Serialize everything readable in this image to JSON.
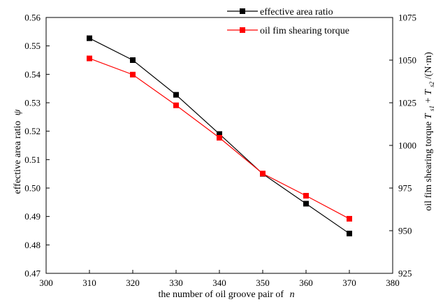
{
  "chart_data": {
    "type": "line",
    "x": [
      310,
      320,
      330,
      340,
      350,
      360,
      370
    ],
    "xlabel": "the number of  oil groove pair of",
    "xlabel_var": "n",
    "xlim": [
      300,
      380
    ],
    "xticks": [
      "300",
      "310",
      "320",
      "330",
      "340",
      "350",
      "360",
      "370",
      "380"
    ],
    "ylabel_left": "effective area ratio",
    "ylabel_left_var": "ψ",
    "ylim_left": [
      0.47,
      0.56
    ],
    "yticks_left": [
      "0.47",
      "0.48",
      "0.49",
      "0.50",
      "0.51",
      "0.52",
      "0.53",
      "0.54",
      "0.55",
      "0.56"
    ],
    "ylabel_right": "oil fim shearing torque",
    "ylabel_right_var": "T",
    "ylabel_right_sub1": "s1",
    "ylabel_right_plus": "+",
    "ylabel_right_sub2": "s2",
    "ylabel_right_unit": "/(N·m)",
    "ylim_right": [
      925,
      1075
    ],
    "yticks_right": [
      "925",
      "950",
      "975",
      "1000",
      "1025",
      "1050",
      "1075"
    ],
    "legend_position": "top-right",
    "series": [
      {
        "name": "effective area ratio",
        "axis": "left",
        "color": "#000000",
        "marker": "square",
        "values": [
          0.5527,
          0.545,
          0.5328,
          0.519,
          0.505,
          0.4945,
          0.484
        ]
      },
      {
        "name": "oil fim shearing torque",
        "axis": "right",
        "color": "#ff0000",
        "marker": "square",
        "values": [
          1051,
          1041.5,
          1023.5,
          1004.5,
          983.5,
          970.5,
          957
        ]
      }
    ]
  }
}
